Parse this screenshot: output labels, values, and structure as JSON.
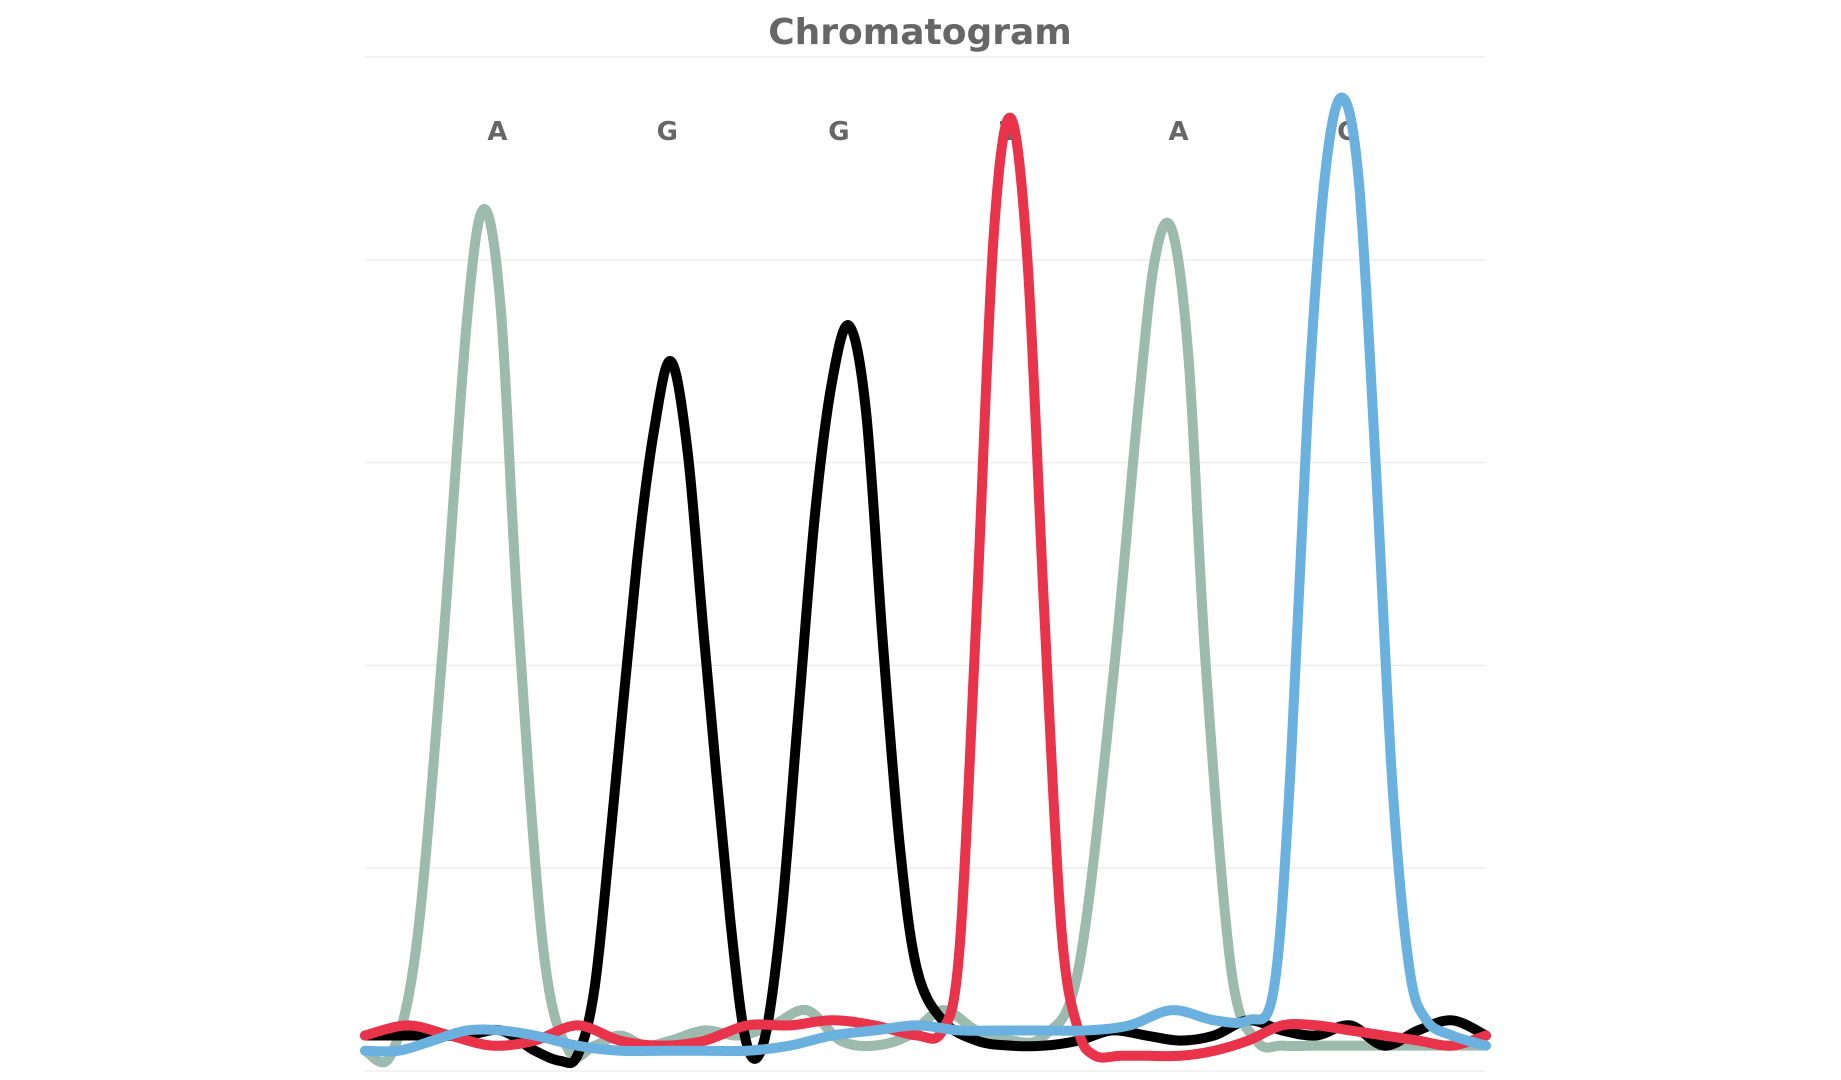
{
  "chart_data": {
    "type": "line",
    "title": "Chromatogram",
    "xlabel": "",
    "ylabel": "",
    "xlim": [
      0,
      6.6
    ],
    "ylim": [
      0,
      100
    ],
    "grid": true,
    "y_gridlines": [
      0,
      20,
      40,
      60,
      80,
      100
    ],
    "legend": "none",
    "base_calls": [
      {
        "label": "A",
        "x": 0.78
      },
      {
        "label": "G",
        "x": 1.78
      },
      {
        "label": "G",
        "x": 2.79
      },
      {
        "label": "T",
        "x": 3.79
      },
      {
        "label": "A",
        "x": 4.79
      },
      {
        "label": "C",
        "x": 5.78
      }
    ],
    "series": [
      {
        "color": "#9dbaae",
        "x": [
          0.0,
          0.15,
          0.3,
          0.45,
          0.6,
          0.7,
          0.8,
          0.9,
          1.05,
          1.2,
          1.35,
          1.5,
          1.65,
          1.8,
          2.0,
          2.2,
          2.4,
          2.6,
          2.8,
          3.0,
          3.2,
          3.4,
          3.6,
          3.8,
          4.0,
          4.2,
          4.4,
          4.55,
          4.65,
          4.75,
          4.85,
          4.95,
          5.1,
          5.25,
          5.4,
          5.6,
          5.8,
          6.0,
          6.2,
          6.4,
          6.6
        ],
        "values": [
          2.0,
          1.5,
          12.0,
          40.0,
          74.0,
          85.0,
          75.0,
          45.0,
          12.0,
          2.0,
          2.5,
          3.5,
          2.5,
          3.0,
          4.0,
          3.5,
          4.5,
          6.0,
          3.0,
          2.5,
          3.5,
          6.0,
          4.0,
          3.0,
          3.5,
          10.0,
          38.0,
          65.0,
          80.0,
          83.0,
          70.0,
          40.0,
          10.0,
          3.0,
          2.5,
          2.5,
          2.5,
          2.5,
          2.5,
          2.5,
          2.5
        ]
      },
      {
        "color": "#000000",
        "x": [
          0.0,
          0.2,
          0.4,
          0.6,
          0.8,
          1.0,
          1.15,
          1.25,
          1.35,
          1.45,
          1.6,
          1.7,
          1.8,
          1.9,
          2.0,
          2.15,
          2.25,
          2.35,
          2.45,
          2.55,
          2.65,
          2.75,
          2.85,
          2.95,
          3.05,
          3.15,
          3.25,
          3.4,
          3.6,
          3.8,
          4.0,
          4.2,
          4.4,
          4.6,
          4.8,
          5.0,
          5.2,
          5.4,
          5.6,
          5.8,
          6.0,
          6.2,
          6.4,
          6.6
        ],
        "values": [
          3.5,
          3.5,
          3.5,
          3.5,
          4.0,
          2.0,
          1.0,
          1.5,
          8.0,
          24.0,
          50.0,
          63.0,
          70.0,
          61.0,
          42.0,
          15.0,
          2.5,
          3.0,
          15.0,
          35.0,
          55.0,
          68.0,
          73.5,
          65.0,
          42.0,
          22.0,
          10.0,
          5.0,
          3.0,
          2.5,
          2.5,
          3.0,
          4.0,
          3.5,
          3.0,
          3.5,
          5.0,
          4.0,
          3.5,
          4.5,
          2.5,
          4.0,
          5.0,
          3.5
        ]
      },
      {
        "color": "#e8334a",
        "x": [
          0.0,
          0.25,
          0.5,
          0.75,
          1.0,
          1.25,
          1.5,
          1.75,
          2.0,
          2.25,
          2.5,
          2.75,
          3.0,
          3.25,
          3.4,
          3.5,
          3.6,
          3.7,
          3.8,
          3.9,
          4.0,
          4.1,
          4.2,
          4.3,
          4.45,
          4.6,
          4.8,
          5.0,
          5.2,
          5.4,
          5.6,
          5.8,
          6.0,
          6.2,
          6.4,
          6.6
        ],
        "values": [
          3.5,
          4.5,
          3.5,
          2.5,
          3.0,
          4.5,
          3.0,
          2.5,
          3.0,
          4.5,
          4.5,
          5.0,
          4.5,
          3.5,
          4.0,
          12.0,
          45.0,
          82.0,
          94.0,
          80.0,
          45.0,
          14.0,
          4.0,
          1.5,
          1.5,
          1.5,
          1.5,
          2.0,
          3.0,
          4.5,
          4.5,
          4.0,
          3.5,
          3.0,
          2.5,
          3.5
        ]
      },
      {
        "color": "#6ab1e0",
        "x": [
          0.0,
          0.2,
          0.4,
          0.6,
          0.8,
          1.0,
          1.25,
          1.5,
          1.75,
          2.0,
          2.25,
          2.5,
          2.75,
          3.0,
          3.25,
          3.5,
          3.75,
          4.0,
          4.25,
          4.5,
          4.75,
          5.0,
          5.2,
          5.35,
          5.45,
          5.55,
          5.65,
          5.75,
          5.85,
          5.95,
          6.05,
          6.15,
          6.25,
          6.4,
          6.6
        ],
        "values": [
          2.0,
          2.0,
          3.0,
          4.0,
          4.0,
          3.5,
          2.5,
          2.0,
          2.0,
          2.0,
          2.0,
          2.5,
          3.5,
          4.0,
          4.5,
          4.0,
          4.0,
          4.0,
          4.0,
          4.5,
          6.0,
          5.0,
          5.0,
          8.0,
          30.0,
          65.0,
          88.0,
          96.0,
          88.0,
          60.0,
          28.0,
          10.0,
          5.0,
          3.5,
          2.5
        ]
      }
    ]
  }
}
